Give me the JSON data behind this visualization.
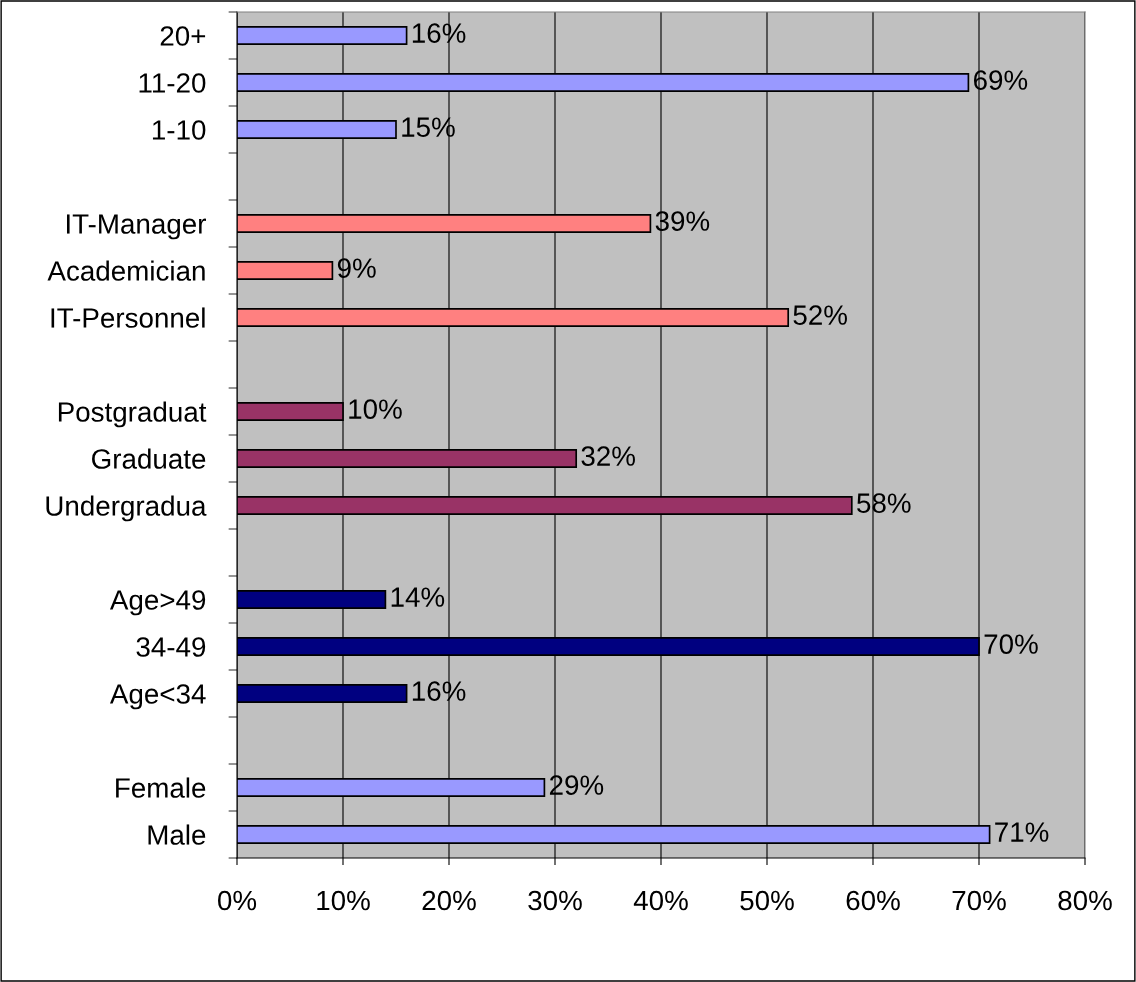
{
  "chart_data": {
    "type": "bar",
    "orientation": "horizontal",
    "categories": [
      "20+",
      "11-20",
      "1-10",
      null,
      "IT-Manager",
      "Academician",
      "IT-Personnel",
      null,
      "Postgraduat",
      "Graduate",
      "Undergradua",
      null,
      "Age>49",
      "34-49",
      "Age<34",
      null,
      "Female",
      "Male"
    ],
    "values": [
      16,
      69,
      15,
      null,
      39,
      9,
      52,
      null,
      10,
      32,
      58,
      null,
      14,
      70,
      16,
      null,
      29,
      71
    ],
    "colors": [
      "#9999ff",
      "#9999ff",
      "#9999ff",
      null,
      "#ff8080",
      "#ff8080",
      "#ff8080",
      null,
      "#993366",
      "#993366",
      "#993366",
      null,
      "#000080",
      "#000080",
      "#000080",
      null,
      "#9999ff",
      "#9999ff"
    ],
    "value_labels": [
      "16%",
      "69%",
      "15%",
      null,
      "39%",
      "9%",
      "52%",
      null,
      "10%",
      "32%",
      "58%",
      null,
      "14%",
      "70%",
      "16%",
      null,
      "29%",
      "71%"
    ],
    "xlim": [
      0,
      80
    ],
    "xticks": [
      {
        "value": 0,
        "label": "0%"
      },
      {
        "value": 10,
        "label": "10%"
      },
      {
        "value": 20,
        "label": "20%"
      },
      {
        "value": 30,
        "label": "30%"
      },
      {
        "value": 40,
        "label": "40%"
      },
      {
        "value": 50,
        "label": "50%"
      },
      {
        "value": 60,
        "label": "60%"
      },
      {
        "value": 70,
        "label": "70%"
      },
      {
        "value": 80,
        "label": "80%"
      }
    ],
    "grid": "x",
    "legend": false
  }
}
